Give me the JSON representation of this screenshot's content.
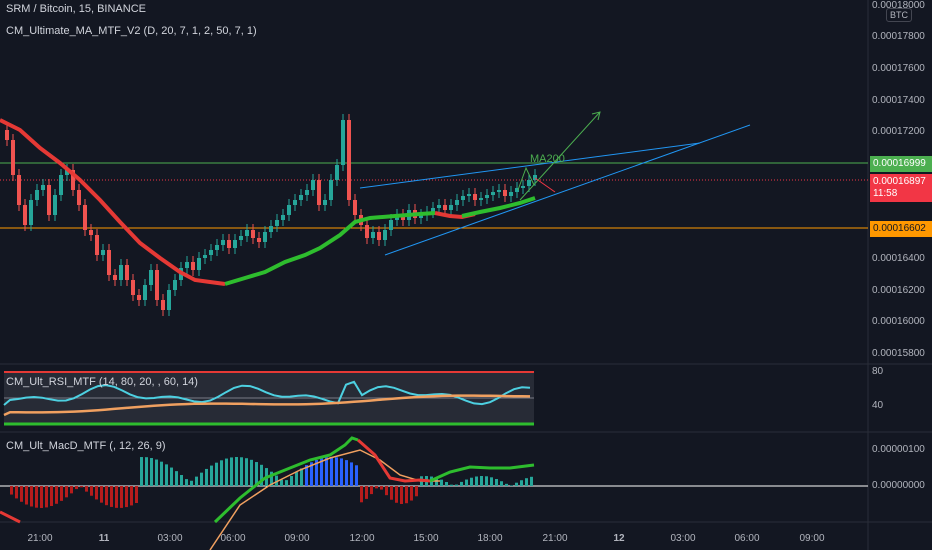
{
  "header": {
    "symbol_line": "SRM / Bitcoin, 15, BINANCE",
    "indicator_1": "CM_Ultimate_MA_MTF_V2 (D, 20, 7, 1, 2, 50, 7, 1)"
  },
  "rsi_pane": {
    "label": "CM_Ult_RSI_MTF (14, 80, 20, , 60, 14)",
    "axis": [
      "80",
      "40"
    ]
  },
  "macd_pane": {
    "label": "CM_Ult_MacD_MTF (, 12, 26, 9)",
    "axis": [
      "0.00000100",
      "0.00000000"
    ]
  },
  "price_axis": {
    "currency": "BTC",
    "top_label": "0.00018000",
    "labels": [
      "0.00017800",
      "0.00017600",
      "0.00017400",
      "0.00017200",
      "0.00016400",
      "0.00016200",
      "0.00016000",
      "0.00015800"
    ],
    "badges": {
      "green_line": "0.00016999",
      "current_price": "0.00016897",
      "countdown": "11:58",
      "orange_line": "0.00016602"
    }
  },
  "annotation": {
    "ma_label": "MA200"
  },
  "time_axis": [
    "21:00",
    "11",
    "03:00",
    "06:00",
    "09:00",
    "12:00",
    "15:00",
    "18:00",
    "21:00",
    "12",
    "03:00",
    "06:00",
    "09:00"
  ],
  "colors": {
    "bg": "#131722",
    "up": "#26a69a",
    "down": "#ef5350",
    "ma_red": "#e53935",
    "ma_green": "#2ebd2e",
    "green_line": "#4caf50",
    "orange_line": "#ff9800",
    "current_red": "#f23645",
    "trendline": "#2196f3"
  }
}
